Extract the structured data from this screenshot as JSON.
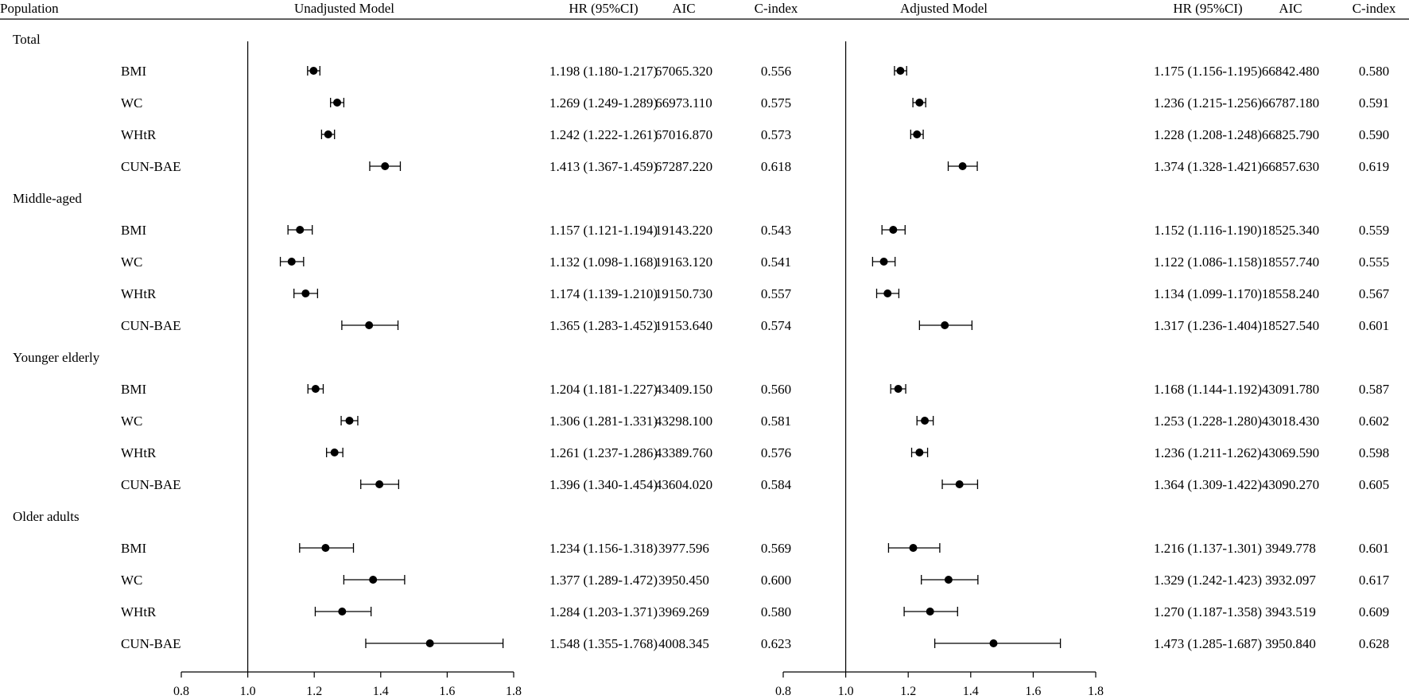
{
  "headers": {
    "population": "Population",
    "left_model": "Unadjusted Model",
    "left_hr": "HR (95%CI)",
    "left_aic": "AIC",
    "left_cindex": "C-index",
    "right_model": "Adjusted Model",
    "right_hr": "HR (95%CI)",
    "right_aic": "AIC",
    "right_cindex": "C-index"
  },
  "chart_data": {
    "type": "forest",
    "axis": {
      "min": 0.8,
      "max": 1.8,
      "ticks": [
        "0.8",
        "1.0",
        "1.2",
        "1.4",
        "1.6",
        "1.8"
      ],
      "reference_line": 1.0
    },
    "groups": [
      {
        "name": "Total",
        "rows": [
          {
            "label": "BMI",
            "unadj": {
              "hr": 1.198,
              "lo": 1.18,
              "hi": 1.217,
              "text": "1.198 (1.180-1.217)",
              "aic": "67065.320",
              "cindex": "0.556"
            },
            "adj": {
              "hr": 1.175,
              "lo": 1.156,
              "hi": 1.195,
              "text": "1.175 (1.156-1.195)",
              "aic": "66842.480",
              "cindex": "0.580"
            }
          },
          {
            "label": "WC",
            "unadj": {
              "hr": 1.269,
              "lo": 1.249,
              "hi": 1.289,
              "text": "1.269 (1.249-1.289)",
              "aic": "66973.110",
              "cindex": "0.575"
            },
            "adj": {
              "hr": 1.236,
              "lo": 1.215,
              "hi": 1.256,
              "text": "1.236 (1.215-1.256)",
              "aic": "66787.180",
              "cindex": "0.591"
            }
          },
          {
            "label": "WHtR",
            "unadj": {
              "hr": 1.242,
              "lo": 1.222,
              "hi": 1.261,
              "text": "1.242 (1.222-1.261)",
              "aic": "67016.870",
              "cindex": "0.573"
            },
            "adj": {
              "hr": 1.228,
              "lo": 1.208,
              "hi": 1.248,
              "text": "1.228 (1.208-1.248)",
              "aic": "66825.790",
              "cindex": "0.590"
            }
          },
          {
            "label": "CUN-BAE",
            "unadj": {
              "hr": 1.413,
              "lo": 1.367,
              "hi": 1.459,
              "text": "1.413 (1.367-1.459)",
              "aic": "67287.220",
              "cindex": "0.618"
            },
            "adj": {
              "hr": 1.374,
              "lo": 1.328,
              "hi": 1.421,
              "text": "1.374 (1.328-1.421)",
              "aic": "66857.630",
              "cindex": "0.619"
            }
          }
        ]
      },
      {
        "name": "Middle-aged",
        "rows": [
          {
            "label": "BMI",
            "unadj": {
              "hr": 1.157,
              "lo": 1.121,
              "hi": 1.194,
              "text": "1.157 (1.121-1.194)",
              "aic": "19143.220",
              "cindex": "0.543"
            },
            "adj": {
              "hr": 1.152,
              "lo": 1.116,
              "hi": 1.19,
              "text": "1.152 (1.116-1.190)",
              "aic": "18525.340",
              "cindex": "0.559"
            }
          },
          {
            "label": "WC",
            "unadj": {
              "hr": 1.132,
              "lo": 1.098,
              "hi": 1.168,
              "text": "1.132 (1.098-1.168)",
              "aic": "19163.120",
              "cindex": "0.541"
            },
            "adj": {
              "hr": 1.122,
              "lo": 1.086,
              "hi": 1.158,
              "text": "1.122 (1.086-1.158)",
              "aic": "18557.740",
              "cindex": "0.555"
            }
          },
          {
            "label": "WHtR",
            "unadj": {
              "hr": 1.174,
              "lo": 1.139,
              "hi": 1.21,
              "text": "1.174 (1.139-1.210)",
              "aic": "19150.730",
              "cindex": "0.557"
            },
            "adj": {
              "hr": 1.134,
              "lo": 1.099,
              "hi": 1.17,
              "text": "1.134 (1.099-1.170)",
              "aic": "18558.240",
              "cindex": "0.567"
            }
          },
          {
            "label": "CUN-BAE",
            "unadj": {
              "hr": 1.365,
              "lo": 1.283,
              "hi": 1.452,
              "text": "1.365 (1.283-1.452)",
              "aic": "19153.640",
              "cindex": "0.574"
            },
            "adj": {
              "hr": 1.317,
              "lo": 1.236,
              "hi": 1.404,
              "text": "1.317 (1.236-1.404)",
              "aic": "18527.540",
              "cindex": "0.601"
            }
          }
        ]
      },
      {
        "name": "Younger elderly",
        "rows": [
          {
            "label": "BMI",
            "unadj": {
              "hr": 1.204,
              "lo": 1.181,
              "hi": 1.227,
              "text": "1.204 (1.181-1.227)",
              "aic": "43409.150",
              "cindex": "0.560"
            },
            "adj": {
              "hr": 1.168,
              "lo": 1.144,
              "hi": 1.192,
              "text": "1.168 (1.144-1.192)",
              "aic": "43091.780",
              "cindex": "0.587"
            }
          },
          {
            "label": "WC",
            "unadj": {
              "hr": 1.306,
              "lo": 1.281,
              "hi": 1.331,
              "text": "1.306 (1.281-1.331)",
              "aic": "43298.100",
              "cindex": "0.581"
            },
            "adj": {
              "hr": 1.253,
              "lo": 1.228,
              "hi": 1.28,
              "text": "1.253 (1.228-1.280)",
              "aic": "43018.430",
              "cindex": "0.602"
            }
          },
          {
            "label": "WHtR",
            "unadj": {
              "hr": 1.261,
              "lo": 1.237,
              "hi": 1.286,
              "text": "1.261 (1.237-1.286)",
              "aic": "43389.760",
              "cindex": "0.576"
            },
            "adj": {
              "hr": 1.236,
              "lo": 1.211,
              "hi": 1.262,
              "text": "1.236 (1.211-1.262)",
              "aic": "43069.590",
              "cindex": "0.598"
            }
          },
          {
            "label": "CUN-BAE",
            "unadj": {
              "hr": 1.396,
              "lo": 1.34,
              "hi": 1.454,
              "text": "1.396 (1.340-1.454)",
              "aic": "43604.020",
              "cindex": "0.584"
            },
            "adj": {
              "hr": 1.364,
              "lo": 1.309,
              "hi": 1.422,
              "text": "1.364 (1.309-1.422)",
              "aic": "43090.270",
              "cindex": "0.605"
            }
          }
        ]
      },
      {
        "name": "Older adults",
        "rows": [
          {
            "label": "BMI",
            "unadj": {
              "hr": 1.234,
              "lo": 1.156,
              "hi": 1.318,
              "text": "1.234 (1.156-1.318)",
              "aic": "3977.596",
              "cindex": "0.569"
            },
            "adj": {
              "hr": 1.216,
              "lo": 1.137,
              "hi": 1.301,
              "text": "1.216 (1.137-1.301)",
              "aic": "3949.778",
              "cindex": "0.601"
            }
          },
          {
            "label": "WC",
            "unadj": {
              "hr": 1.377,
              "lo": 1.289,
              "hi": 1.472,
              "text": "1.377 (1.289-1.472)",
              "aic": "3950.450",
              "cindex": "0.600"
            },
            "adj": {
              "hr": 1.329,
              "lo": 1.242,
              "hi": 1.423,
              "text": "1.329 (1.242-1.423)",
              "aic": "3932.097",
              "cindex": "0.617"
            }
          },
          {
            "label": "WHtR",
            "unadj": {
              "hr": 1.284,
              "lo": 1.203,
              "hi": 1.371,
              "text": "1.284 (1.203-1.371)",
              "aic": "3969.269",
              "cindex": "0.580"
            },
            "adj": {
              "hr": 1.27,
              "lo": 1.187,
              "hi": 1.358,
              "text": "1.270 (1.187-1.358)",
              "aic": "3943.519",
              "cindex": "0.609"
            }
          },
          {
            "label": "CUN-BAE",
            "unadj": {
              "hr": 1.548,
              "lo": 1.355,
              "hi": 1.768,
              "text": "1.548 (1.355-1.768)",
              "aic": "4008.345",
              "cindex": "0.623"
            },
            "adj": {
              "hr": 1.473,
              "lo": 1.285,
              "hi": 1.687,
              "text": "1.473 (1.285-1.687)",
              "aic": "3950.840",
              "cindex": "0.628"
            }
          }
        ]
      }
    ]
  }
}
